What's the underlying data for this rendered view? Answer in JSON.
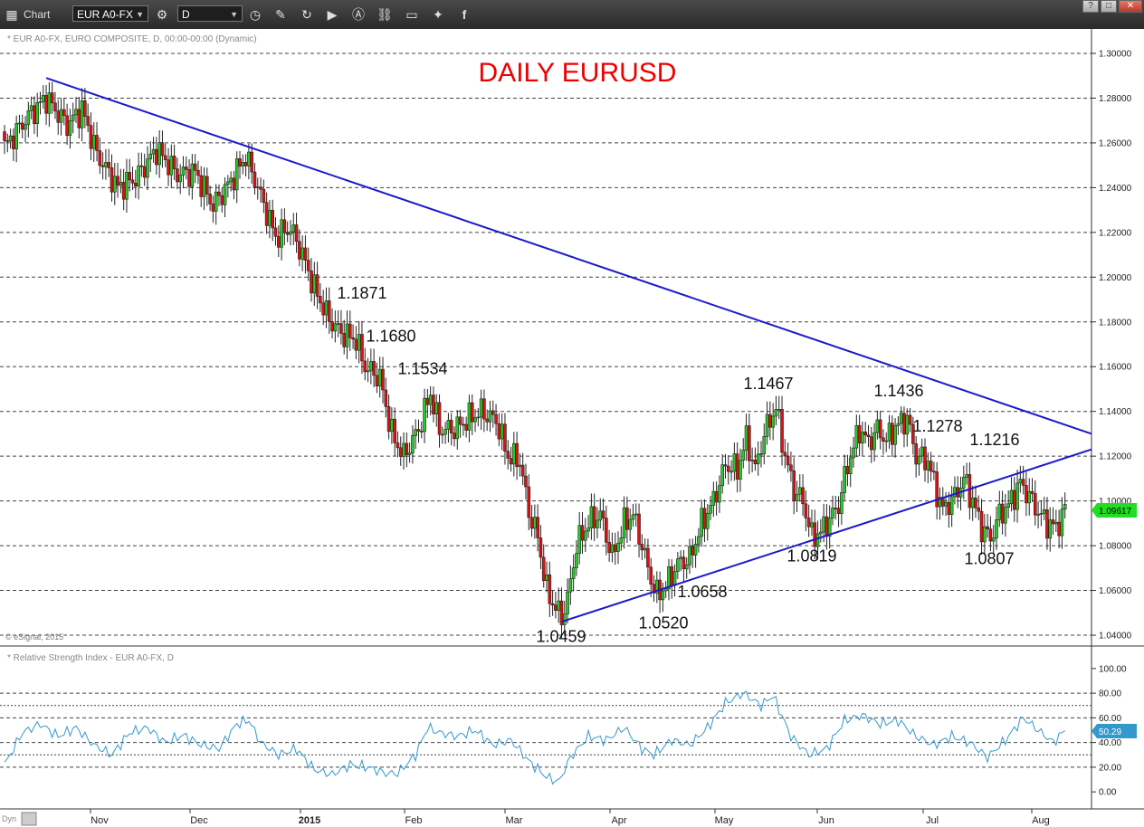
{
  "toolbar": {
    "title": "Chart",
    "symbol": "EUR A0-FX",
    "interval": "D",
    "window_buttons": [
      "?",
      "□",
      "✕"
    ]
  },
  "colors": {
    "up": "#22cc22",
    "down": "#dd1111",
    "trendline": "#1a1acc",
    "rsi_line": "#3399cc",
    "title": "#ee0000",
    "price_tag": "#22dd22"
  },
  "chart_data": [
    {
      "type": "candlestick",
      "title": "DAILY EURUSD",
      "header": "* EUR A0-FX, EURO COMPOSITE, D, 00:00-00:00 (Dynamic)",
      "copyright": "© eSignal, 2015",
      "ylim": [
        1.04,
        1.3
      ],
      "yticks": [
        "1.30000",
        "1.28000",
        "1.26000",
        "1.24000",
        "1.22000",
        "1.20000",
        "1.18000",
        "1.16000",
        "1.14000",
        "1.12000",
        "1.10000",
        "1.08000",
        "1.06000",
        "1.04000"
      ],
      "grid": true,
      "last_price": "1.09617",
      "x_months": [
        "Nov",
        "Dec",
        "2015",
        "Feb",
        "Mar",
        "Apr",
        "May",
        "Jun",
        "Jul",
        "Aug"
      ],
      "annotations": [
        "1.1871",
        "1.1680",
        "1.1534",
        "1.1467",
        "1.1436",
        "1.1278",
        "1.1216",
        "1.0819",
        "1.0807",
        "1.0658",
        "1.0520",
        "1.0459"
      ],
      "close_path": [
        [
          0,
          1.258
        ],
        [
          8,
          1.272
        ],
        [
          14,
          1.28
        ],
        [
          21,
          1.268
        ],
        [
          26,
          1.275
        ],
        [
          31,
          1.255
        ],
        [
          38,
          1.24
        ],
        [
          44,
          1.244
        ],
        [
          51,
          1.257
        ],
        [
          58,
          1.246
        ],
        [
          64,
          1.247
        ],
        [
          70,
          1.232
        ],
        [
          75,
          1.241
        ],
        [
          81,
          1.254
        ],
        [
          85,
          1.24
        ],
        [
          91,
          1.218
        ],
        [
          96,
          1.222
        ],
        [
          100,
          1.21
        ],
        [
          104,
          1.195
        ],
        [
          109,
          1.181
        ],
        [
          113,
          1.175
        ],
        [
          118,
          1.172
        ],
        [
          121,
          1.16
        ],
        [
          126,
          1.155
        ],
        [
          130,
          1.13
        ],
        [
          134,
          1.12
        ],
        [
          139,
          1.132
        ],
        [
          143,
          1.148
        ],
        [
          146,
          1.132
        ],
        [
          151,
          1.132
        ],
        [
          156,
          1.137
        ],
        [
          160,
          1.14
        ],
        [
          165,
          1.136
        ],
        [
          169,
          1.12
        ],
        [
          173,
          1.118
        ],
        [
          176,
          1.095
        ],
        [
          179,
          1.084
        ],
        [
          182,
          1.06
        ],
        [
          185,
          1.052
        ],
        [
          187,
          1.048
        ],
        [
          189,
          1.056
        ],
        [
          192,
          1.08
        ],
        [
          196,
          1.09
        ],
        [
          200,
          1.094
        ],
        [
          204,
          1.075
        ],
        [
          208,
          1.09
        ],
        [
          211,
          1.094
        ],
        [
          214,
          1.08
        ],
        [
          217,
          1.065
        ],
        [
          219,
          1.058
        ],
        [
          222,
          1.062
        ],
        [
          226,
          1.072
        ],
        [
          230,
          1.074
        ],
        [
          234,
          1.09
        ],
        [
          238,
          1.1
        ],
        [
          242,
          1.116
        ],
        [
          246,
          1.114
        ],
        [
          249,
          1.128
        ],
        [
          252,
          1.114
        ],
        [
          255,
          1.13
        ],
        [
          259,
          1.142
        ],
        [
          262,
          1.12
        ],
        [
          265,
          1.105
        ],
        [
          268,
          1.1
        ],
        [
          271,
          1.084
        ],
        [
          274,
          1.086
        ],
        [
          277,
          1.092
        ],
        [
          280,
          1.098
        ],
        [
          283,
          1.116
        ],
        [
          287,
          1.132
        ],
        [
          290,
          1.126
        ],
        [
          293,
          1.132
        ],
        [
          296,
          1.127
        ],
        [
          299,
          1.133
        ],
        [
          303,
          1.137
        ],
        [
          306,
          1.12
        ],
        [
          310,
          1.118
        ],
        [
          312,
          1.108
        ],
        [
          315,
          1.096
        ],
        [
          319,
          1.102
        ],
        [
          322,
          1.11
        ],
        [
          325,
          1.1
        ],
        [
          328,
          1.088
        ],
        [
          331,
          1.083
        ],
        [
          334,
          1.094
        ],
        [
          337,
          1.098
        ],
        [
          341,
          1.108
        ],
        [
          344,
          1.102
        ],
        [
          347,
          1.095
        ],
        [
          350,
          1.09
        ],
        [
          353,
          1.088
        ],
        [
          356,
          1.096
        ]
      ],
      "trendlines": [
        {
          "from": [
            14,
            1.289
          ],
          "to": [
            370,
            1.13
          ]
        },
        {
          "from": [
            187,
            1.046
          ],
          "to": [
            370,
            1.123
          ]
        }
      ]
    },
    {
      "type": "line",
      "title": "* Relative Strength Index - EUR A0-FX, D",
      "ylim": [
        -5,
        105
      ],
      "yticks": [
        "100.00",
        "80.00",
        "60.00",
        "40.00",
        "20.00",
        "0.00"
      ],
      "last_value": "50.29",
      "guides": [
        30,
        70
      ],
      "rsi_path": [
        [
          0,
          22
        ],
        [
          6,
          48
        ],
        [
          12,
          55
        ],
        [
          18,
          45
        ],
        [
          24,
          52
        ],
        [
          30,
          38
        ],
        [
          36,
          30
        ],
        [
          42,
          48
        ],
        [
          48,
          52
        ],
        [
          54,
          40
        ],
        [
          60,
          46
        ],
        [
          66,
          38
        ],
        [
          72,
          35
        ],
        [
          78,
          55
        ],
        [
          82,
          58
        ],
        [
          86,
          40
        ],
        [
          92,
          30
        ],
        [
          98,
          35
        ],
        [
          104,
          18
        ],
        [
          110,
          14
        ],
        [
          116,
          22
        ],
        [
          122,
          20
        ],
        [
          128,
          15
        ],
        [
          132,
          15
        ],
        [
          138,
          30
        ],
        [
          142,
          52
        ],
        [
          146,
          48
        ],
        [
          152,
          45
        ],
        [
          158,
          50
        ],
        [
          164,
          38
        ],
        [
          170,
          42
        ],
        [
          176,
          25
        ],
        [
          182,
          12
        ],
        [
          186,
          8
        ],
        [
          190,
          28
        ],
        [
          196,
          45
        ],
        [
          202,
          42
        ],
        [
          208,
          52
        ],
        [
          214,
          35
        ],
        [
          218,
          30
        ],
        [
          224,
          42
        ],
        [
          230,
          38
        ],
        [
          236,
          52
        ],
        [
          242,
          72
        ],
        [
          248,
          80
        ],
        [
          254,
          70
        ],
        [
          258,
          78
        ],
        [
          264,
          45
        ],
        [
          270,
          30
        ],
        [
          276,
          35
        ],
        [
          282,
          58
        ],
        [
          288,
          62
        ],
        [
          294,
          55
        ],
        [
          300,
          58
        ],
        [
          306,
          45
        ],
        [
          312,
          38
        ],
        [
          318,
          45
        ],
        [
          324,
          40
        ],
        [
          330,
          28
        ],
        [
          336,
          42
        ],
        [
          342,
          60
        ],
        [
          346,
          52
        ],
        [
          352,
          40
        ],
        [
          356,
          50
        ]
      ]
    }
  ]
}
